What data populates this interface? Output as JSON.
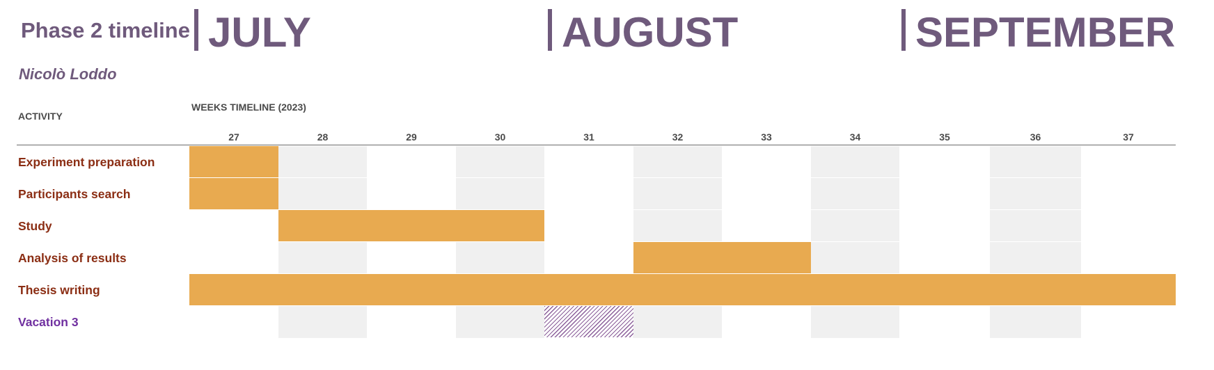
{
  "header": {
    "title": "Phase 2 timeline",
    "author": "Nicolò Loddo",
    "months": [
      {
        "label": "JULY",
        "start_week": 27
      },
      {
        "label": "AUGUST",
        "start_week": 31
      },
      {
        "label": "SEPTEMBER",
        "start_week": 35
      }
    ],
    "activity_header": "ACTIVITY",
    "timeline_header": "WEEKS TIMELINE (2023)"
  },
  "colors": {
    "accent_purple": "#6f5a7c",
    "task_orange": "#e8aa50",
    "task_label": "#8b2e14",
    "vacation_label": "#7030a0",
    "stripe_gray": "#f0f0f0"
  },
  "chart_data": {
    "type": "gantt",
    "title": "Phase 2 timeline",
    "x_label": "WEEKS TIMELINE (2023)",
    "weeks": [
      27,
      28,
      29,
      30,
      31,
      32,
      33,
      34,
      35,
      36,
      37
    ],
    "tasks": [
      {
        "name": "Experiment preparation",
        "start_week": 27,
        "end_week": 27,
        "kind": "task"
      },
      {
        "name": "Participants search",
        "start_week": 27,
        "end_week": 27,
        "kind": "task"
      },
      {
        "name": "Study",
        "start_week": 28,
        "end_week": 30,
        "kind": "task"
      },
      {
        "name": "Analysis of results",
        "start_week": 32,
        "end_week": 33,
        "kind": "task"
      },
      {
        "name": "Thesis writing",
        "start_week": 27,
        "end_week": 37,
        "kind": "task"
      },
      {
        "name": "Vacation 3",
        "start_week": 31,
        "end_week": 31,
        "kind": "vacation"
      }
    ],
    "shaded_weeks": [
      28,
      30,
      32,
      34,
      36
    ]
  }
}
